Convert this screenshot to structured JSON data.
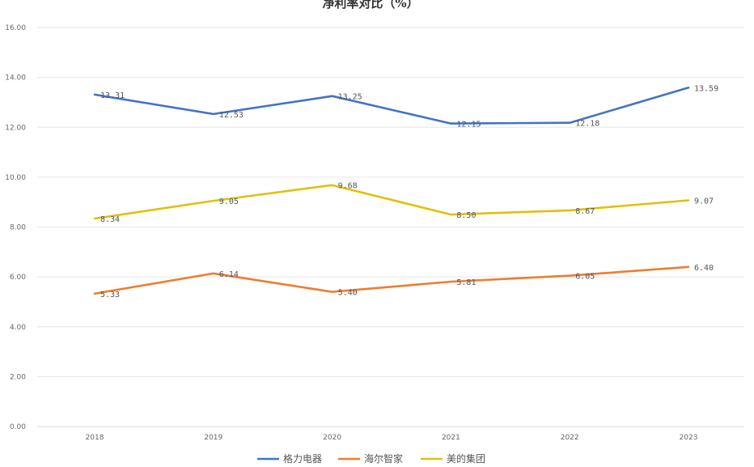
{
  "chart_data": {
    "type": "line",
    "title": "净利率对比（%）",
    "xlabel": "",
    "ylabel": "",
    "categories": [
      "2018",
      "2019",
      "2020",
      "2021",
      "2022",
      "2023"
    ],
    "ylim": [
      0,
      16
    ],
    "yticks": [
      "0.00",
      "2.00",
      "4.00",
      "6.00",
      "8.00",
      "10.00",
      "12.00",
      "14.00",
      "16.00"
    ],
    "grid": true,
    "legend_position": "bottom",
    "series": [
      {
        "name": "格力电器",
        "color": "#4472c4",
        "values": [
          13.31,
          12.53,
          13.25,
          12.15,
          12.18,
          13.59
        ],
        "labels": [
          "13.31",
          "12.53",
          "13.25",
          "12.15",
          "12.18",
          "13.59"
        ]
      },
      {
        "name": "海尔智家",
        "color": "#ed7d31",
        "values": [
          5.33,
          6.14,
          5.4,
          5.81,
          6.05,
          6.4
        ],
        "labels": [
          "5.33",
          "6.14",
          "5.40",
          "5.81",
          "6.05",
          "6.40"
        ]
      },
      {
        "name": "美的集团",
        "color": "#e0c10c",
        "values": [
          8.34,
          9.05,
          9.68,
          8.5,
          8.67,
          9.07
        ],
        "labels": [
          "8.34",
          "9.05",
          "9.68",
          "8.50",
          "8.67",
          "9.07"
        ]
      }
    ]
  }
}
